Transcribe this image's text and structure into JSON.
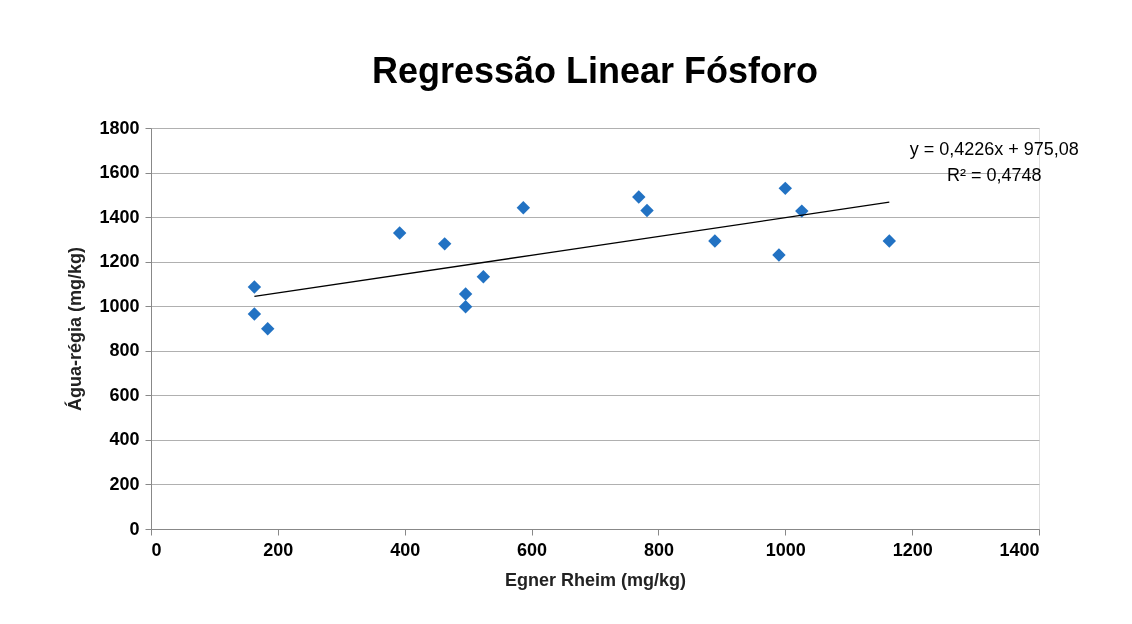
{
  "chart_data": {
    "type": "scatter",
    "title": "Regressão Linear Fósforo",
    "xlabel": "Egner Rheim (mg/kg)",
    "ylabel": "Água-régia (mg/kg)",
    "series": [
      {
        "color": "#2272c3",
        "marker": "diamond",
        "x": [
          163,
          163,
          184,
          392,
          463,
          496,
          496,
          524,
          587,
          769,
          782,
          889,
          990,
          1000,
          1026,
          1164
        ],
        "values": [
          1086,
          965,
          899,
          1329,
          1280,
          1055,
          998,
          1132,
          1442,
          1490,
          1430,
          1293,
          1230,
          1529,
          1427,
          1293
        ]
      },
      {
        "type": "line",
        "color": "#000000",
        "line_style": "solid",
        "marker": "none",
        "x": [
          163,
          1164
        ],
        "values": [
          1044,
          1467
        ]
      }
    ],
    "annotations": [
      "y = 0,4226x + 975,08",
      "R² = 0,4748"
    ],
    "xlim": [
      0,
      1400
    ],
    "xticks": [
      0,
      200,
      400,
      600,
      800,
      1000,
      1200,
      1400
    ],
    "ylim": [
      0,
      1800
    ],
    "yticks": [
      0,
      200,
      400,
      600,
      800,
      1000,
      1200,
      1400,
      1600,
      1800
    ],
    "grid": "y"
  }
}
